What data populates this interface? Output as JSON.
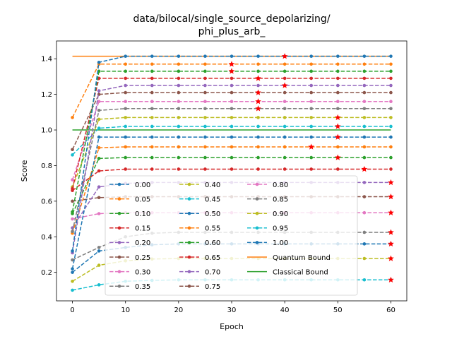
{
  "chart_data": {
    "type": "line",
    "title_lines": [
      "data/bilocal/single_source_depolarizing/",
      "phi_plus_arb_"
    ],
    "xlabel": "Epoch",
    "ylabel": "Score",
    "xlim": [
      -3,
      63
    ],
    "ylim": [
      0.04,
      1.5
    ],
    "x": [
      0,
      5,
      10,
      15,
      20,
      25,
      30,
      35,
      40,
      45,
      50,
      55,
      60
    ],
    "xticks": [
      0,
      10,
      20,
      30,
      40,
      50,
      60
    ],
    "yticks": [
      0.2,
      0.4,
      0.6,
      0.8,
      1.0,
      1.2,
      1.4
    ],
    "grid": false,
    "legend_position": "lower-center",
    "series": [
      {
        "name": "0.00",
        "color": "#1f77b4",
        "dashed": true,
        "values": [
          0.32,
          1.38,
          1.414,
          1.414,
          1.414,
          1.414,
          1.414,
          1.414,
          1.414,
          1.414,
          1.414,
          1.414,
          1.414
        ],
        "star_index": 8
      },
      {
        "name": "0.05",
        "color": "#ff7f0e",
        "dashed": true,
        "values": [
          1.07,
          1.37,
          1.37,
          1.37,
          1.37,
          1.37,
          1.37,
          1.37,
          1.37,
          1.37,
          1.37,
          1.37,
          1.37
        ],
        "star_index": 6
      },
      {
        "name": "0.10",
        "color": "#2ca02c",
        "dashed": true,
        "values": [
          0.54,
          1.33,
          1.33,
          1.33,
          1.33,
          1.33,
          1.33,
          1.33,
          1.33,
          1.33,
          1.33,
          1.33,
          1.33
        ],
        "star_index": 6
      },
      {
        "name": "0.15",
        "color": "#d62728",
        "dashed": true,
        "values": [
          0.67,
          1.29,
          1.29,
          1.29,
          1.29,
          1.29,
          1.29,
          1.29,
          1.29,
          1.29,
          1.29,
          1.29,
          1.29
        ],
        "star_index": 7
      },
      {
        "name": "0.20",
        "color": "#9467bd",
        "dashed": true,
        "values": [
          0.31,
          1.22,
          1.25,
          1.25,
          1.25,
          1.25,
          1.25,
          1.25,
          1.25,
          1.25,
          1.25,
          1.25,
          1.25
        ],
        "star_index": 8
      },
      {
        "name": "0.25",
        "color": "#8c564b",
        "dashed": true,
        "values": [
          0.89,
          1.2,
          1.21,
          1.21,
          1.21,
          1.21,
          1.21,
          1.21,
          1.21,
          1.21,
          1.21,
          1.21,
          1.21
        ],
        "star_index": 7
      },
      {
        "name": "0.30",
        "color": "#e377c2",
        "dashed": true,
        "values": [
          0.72,
          1.16,
          1.16,
          1.16,
          1.16,
          1.16,
          1.16,
          1.16,
          1.16,
          1.16,
          1.16,
          1.16,
          1.16
        ],
        "star_index": 7
      },
      {
        "name": "0.35",
        "color": "#7f7f7f",
        "dashed": true,
        "values": [
          0.43,
          1.11,
          1.12,
          1.12,
          1.12,
          1.12,
          1.12,
          1.12,
          1.12,
          1.12,
          1.12,
          1.12,
          1.12
        ],
        "star_index": 7
      },
      {
        "name": "0.40",
        "color": "#bcbd22",
        "dashed": true,
        "values": [
          0.68,
          1.06,
          1.07,
          1.07,
          1.07,
          1.07,
          1.07,
          1.07,
          1.07,
          1.07,
          1.07,
          1.07,
          1.07
        ],
        "star_index": 10
      },
      {
        "name": "0.45",
        "color": "#17becf",
        "dashed": true,
        "values": [
          0.86,
          1.01,
          1.02,
          1.02,
          1.02,
          1.02,
          1.02,
          1.02,
          1.02,
          1.02,
          1.02,
          1.02,
          1.02
        ],
        "star_index": 10
      },
      {
        "name": "0.50",
        "color": "#1f77b4",
        "dashed": true,
        "values": [
          0.22,
          0.96,
          0.96,
          0.96,
          0.96,
          0.96,
          0.96,
          0.96,
          0.96,
          0.96,
          0.96,
          0.96,
          0.96
        ],
        "star_index": 10
      },
      {
        "name": "0.55",
        "color": "#ff7f0e",
        "dashed": true,
        "values": [
          0.42,
          0.9,
          0.905,
          0.905,
          0.905,
          0.905,
          0.905,
          0.905,
          0.905,
          0.905,
          0.905,
          0.905,
          0.905
        ],
        "star_index": 9
      },
      {
        "name": "0.60",
        "color": "#2ca02c",
        "dashed": true,
        "values": [
          0.53,
          0.84,
          0.845,
          0.845,
          0.845,
          0.845,
          0.845,
          0.845,
          0.845,
          0.845,
          0.845,
          0.845,
          0.845
        ],
        "star_index": 10
      },
      {
        "name": "0.65",
        "color": "#d62728",
        "dashed": true,
        "values": [
          0.66,
          0.77,
          0.78,
          0.78,
          0.78,
          0.78,
          0.78,
          0.78,
          0.78,
          0.78,
          0.78,
          0.78,
          0.78
        ],
        "star_index": 11
      },
      {
        "name": "0.70",
        "color": "#9467bd",
        "dashed": true,
        "values": [
          0.45,
          0.68,
          0.7,
          0.705,
          0.705,
          0.705,
          0.705,
          0.705,
          0.705,
          0.705,
          0.705,
          0.705,
          0.705
        ],
        "star_index": 12
      },
      {
        "name": "0.75",
        "color": "#8c564b",
        "dashed": true,
        "values": [
          0.6,
          0.62,
          0.625,
          0.625,
          0.625,
          0.625,
          0.625,
          0.625,
          0.625,
          0.625,
          0.625,
          0.625,
          0.625
        ],
        "star_index": 12
      },
      {
        "name": "0.80",
        "color": "#e377c2",
        "dashed": true,
        "values": [
          0.5,
          0.53,
          0.535,
          0.535,
          0.535,
          0.535,
          0.535,
          0.535,
          0.535,
          0.535,
          0.535,
          0.535,
          0.535
        ],
        "star_index": 12
      },
      {
        "name": "0.85",
        "color": "#7f7f7f",
        "dashed": true,
        "values": [
          0.27,
          0.34,
          0.4,
          0.42,
          0.425,
          0.425,
          0.425,
          0.425,
          0.425,
          0.425,
          0.425,
          0.425,
          0.425
        ],
        "star_index": 12
      },
      {
        "name": "0.90",
        "color": "#bcbd22",
        "dashed": true,
        "values": [
          0.15,
          0.24,
          0.265,
          0.275,
          0.278,
          0.278,
          0.278,
          0.278,
          0.278,
          0.278,
          0.278,
          0.278,
          0.278
        ],
        "star_index": 12
      },
      {
        "name": "0.95",
        "color": "#17becf",
        "dashed": true,
        "values": [
          0.1,
          0.13,
          0.15,
          0.155,
          0.158,
          0.158,
          0.158,
          0.158,
          0.158,
          0.158,
          0.158,
          0.158,
          0.158
        ],
        "star_index": 12
      },
      {
        "name": "1.00",
        "color": "#1f77b4",
        "dashed": true,
        "values": [
          0.2,
          0.32,
          0.34,
          0.355,
          0.36,
          0.36,
          0.36,
          0.36,
          0.36,
          0.36,
          0.36,
          0.36,
          0.36
        ],
        "star_index": 12
      }
    ],
    "reference_lines": [
      {
        "name": "Quantum Bound",
        "color": "#ff7f0e",
        "value": 1.414
      },
      {
        "name": "Classical Bound",
        "color": "#2ca02c",
        "value": 1.0
      }
    ]
  }
}
